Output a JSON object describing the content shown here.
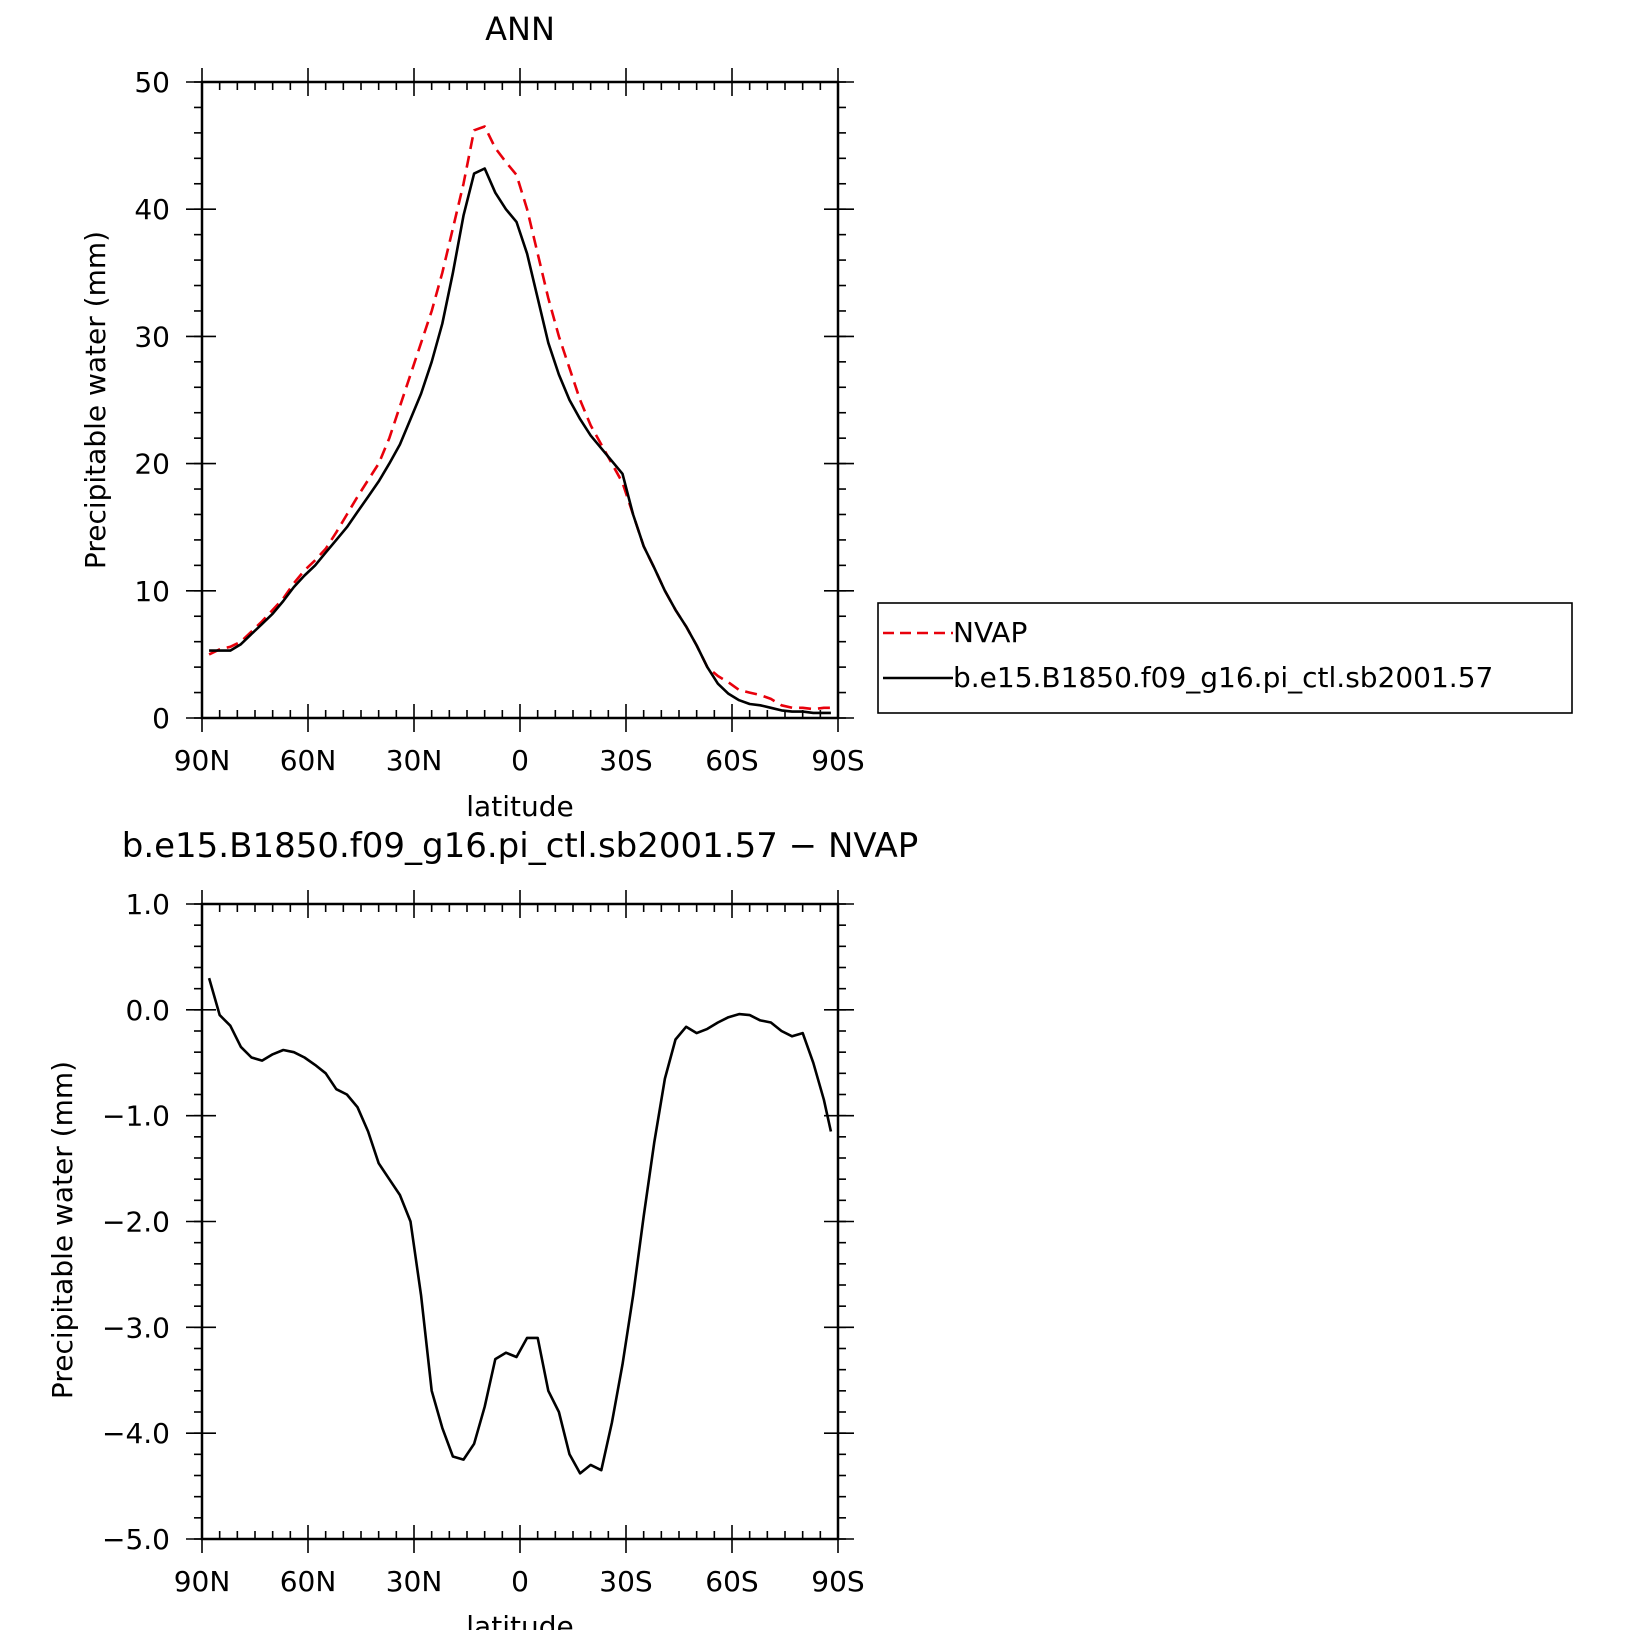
{
  "chart_data": [
    {
      "type": "line",
      "title": "ANN",
      "xlabel": "latitude",
      "ylabel": "Precipitable water (mm)",
      "xlim": [
        90,
        -90
      ],
      "ylim": [
        0,
        50
      ],
      "xticks": [
        90,
        60,
        30,
        0,
        -30,
        -60,
        -90
      ],
      "xtick_labels": [
        "90N",
        "60N",
        "30N",
        "0",
        "30S",
        "60S",
        "90S"
      ],
      "yticks": [
        0,
        10,
        20,
        30,
        40,
        50
      ],
      "ytick_labels": [
        "0",
        "10",
        "20",
        "30",
        "40",
        "50"
      ],
      "legend_position": "right",
      "series": [
        {
          "name": "NVAP",
          "color": "#e8000b",
          "dash": "dashed",
          "x": [
            88,
            85,
            82,
            79,
            76,
            73,
            70,
            67,
            64,
            61,
            58,
            55,
            52,
            49,
            46,
            43,
            40,
            37,
            34,
            31,
            28,
            25,
            22,
            19,
            16,
            13,
            10,
            7,
            4,
            1,
            -2,
            -5,
            -8,
            -11,
            -14,
            -17,
            -20,
            -23,
            -26,
            -29,
            -32,
            -35,
            -38,
            -41,
            -44,
            -47,
            -50,
            -53,
            -56,
            -59,
            -62,
            -65,
            -68,
            -71,
            -74,
            -77,
            -80,
            -83,
            -86,
            -88
          ],
          "y": [
            5.0,
            5.4,
            5.6,
            6.0,
            6.8,
            7.6,
            8.5,
            9.4,
            10.6,
            11.6,
            12.4,
            13.3,
            14.6,
            16.0,
            17.4,
            18.7,
            20.0,
            22.0,
            24.5,
            27.0,
            29.5,
            32.0,
            35.0,
            38.5,
            42.0,
            46.2,
            46.5,
            44.8,
            43.7,
            42.7,
            40.0,
            36.5,
            33.0,
            30.0,
            27.5,
            25.0,
            23.0,
            21.5,
            20.0,
            18.5,
            16.0,
            13.5,
            11.8,
            10.0,
            8.5,
            7.2,
            5.7,
            4.0,
            3.3,
            2.8,
            2.2,
            2.0,
            1.8,
            1.5,
            1.0,
            0.8,
            0.8,
            0.7,
            0.8,
            0.8
          ]
        },
        {
          "name": "b.e15.B1850.f09_g16.pi_ctl.sb2001.57",
          "color": "#000000",
          "dash": "solid",
          "x": [
            88,
            85,
            82,
            79,
            76,
            73,
            70,
            67,
            64,
            61,
            58,
            55,
            52,
            49,
            46,
            43,
            40,
            37,
            34,
            31,
            28,
            25,
            22,
            19,
            16,
            13,
            10,
            7,
            4,
            1,
            -2,
            -5,
            -8,
            -11,
            -14,
            -17,
            -20,
            -23,
            -26,
            -29,
            -32,
            -35,
            -38,
            -41,
            -44,
            -47,
            -50,
            -53,
            -56,
            -59,
            -62,
            -65,
            -68,
            -71,
            -74,
            -77,
            -80,
            -83,
            -86,
            -88
          ],
          "y": [
            5.3,
            5.3,
            5.3,
            5.8,
            6.6,
            7.4,
            8.2,
            9.2,
            10.3,
            11.2,
            12.0,
            13.0,
            14.0,
            15.0,
            16.2,
            17.4,
            18.6,
            20.0,
            21.5,
            23.5,
            25.5,
            28.0,
            31.0,
            35.0,
            39.5,
            42.8,
            43.2,
            41.3,
            40.0,
            39.0,
            36.5,
            33.0,
            29.5,
            27.0,
            25.0,
            23.5,
            22.2,
            21.2,
            20.2,
            19.2,
            16.0,
            13.5,
            11.8,
            10.0,
            8.5,
            7.2,
            5.7,
            4.0,
            2.7,
            1.9,
            1.4,
            1.1,
            1.0,
            0.8,
            0.6,
            0.5,
            0.5,
            0.4,
            0.4,
            0.4
          ]
        }
      ]
    },
    {
      "type": "line",
      "title": "b.e15.B1850.f09_g16.pi_ctl.sb2001.57 − NVAP",
      "xlabel": "latitude",
      "ylabel": "Precipitable water (mm)",
      "xlim": [
        90,
        -90
      ],
      "ylim": [
        -5.0,
        1.0
      ],
      "xticks": [
        90,
        60,
        30,
        0,
        -30,
        -60,
        -90
      ],
      "xtick_labels": [
        "90N",
        "60N",
        "30N",
        "0",
        "30S",
        "60S",
        "90S"
      ],
      "yticks": [
        1.0,
        0.0,
        -1.0,
        -2.0,
        -3.0,
        -4.0,
        -5.0
      ],
      "ytick_labels": [
        "1.0",
        "0.0",
        "−1.0",
        "−2.0",
        "−3.0",
        "−4.0",
        "−5.0"
      ],
      "series": [
        {
          "color": "#000000",
          "dash": "solid",
          "x": [
            88,
            85,
            82,
            79,
            76,
            73,
            70,
            67,
            64,
            61,
            58,
            55,
            52,
            49,
            46,
            43,
            40,
            37,
            34,
            31,
            28,
            25,
            22,
            19,
            16,
            13,
            10,
            7,
            4,
            1,
            -2,
            -5,
            -8,
            -11,
            -14,
            -17,
            -20,
            -23,
            -26,
            -29,
            -32,
            -35,
            -38,
            -41,
            -44,
            -47,
            -50,
            -53,
            -56,
            -59,
            -62,
            -65,
            -68,
            -71,
            -74,
            -77,
            -80,
            -83,
            -86,
            -88
          ],
          "y": [
            0.3,
            -0.05,
            -0.15,
            -0.35,
            -0.45,
            -0.48,
            -0.42,
            -0.38,
            -0.4,
            -0.45,
            -0.52,
            -0.6,
            -0.75,
            -0.8,
            -0.92,
            -1.15,
            -1.45,
            -1.6,
            -1.75,
            -2.0,
            -2.7,
            -3.6,
            -3.95,
            -4.22,
            -4.25,
            -4.1,
            -3.75,
            -3.3,
            -3.24,
            -3.28,
            -3.1,
            -3.1,
            -3.6,
            -3.8,
            -4.2,
            -4.38,
            -4.3,
            -4.35,
            -3.9,
            -3.35,
            -2.7,
            -1.95,
            -1.25,
            -0.65,
            -0.28,
            -0.16,
            -0.22,
            -0.18,
            -0.12,
            -0.07,
            -0.04,
            -0.05,
            -0.1,
            -0.12,
            -0.2,
            -0.25,
            -0.22,
            -0.5,
            -0.85,
            -1.15
          ]
        }
      ]
    }
  ]
}
